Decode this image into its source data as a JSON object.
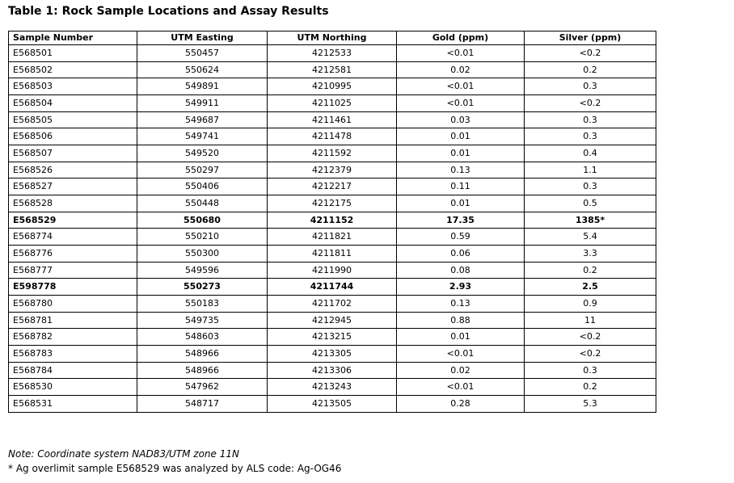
{
  "page": {
    "title": "Table 1: Rock Sample Locations and Assay Results"
  },
  "table": {
    "columns": [
      "Sample Number",
      "UTM Easting",
      "UTM Northing",
      "Gold (ppm)",
      "Silver (ppm)"
    ],
    "rows": [
      {
        "bold": false,
        "cells": [
          "E568501",
          "550457",
          "4212533",
          "<0.01",
          "<0.2"
        ]
      },
      {
        "bold": false,
        "cells": [
          "E568502",
          "550624",
          "4212581",
          "0.02",
          "0.2"
        ]
      },
      {
        "bold": false,
        "cells": [
          "E568503",
          "549891",
          "4210995",
          "<0.01",
          "0.3"
        ]
      },
      {
        "bold": false,
        "cells": [
          "E568504",
          "549911",
          "4211025",
          "<0.01",
          "<0.2"
        ]
      },
      {
        "bold": false,
        "cells": [
          "E568505",
          "549687",
          "4211461",
          "0.03",
          "0.3"
        ]
      },
      {
        "bold": false,
        "cells": [
          "E568506",
          "549741",
          "4211478",
          "0.01",
          "0.3"
        ]
      },
      {
        "bold": false,
        "cells": [
          "E568507",
          "549520",
          "4211592",
          "0.01",
          "0.4"
        ]
      },
      {
        "bold": false,
        "cells": [
          "E568526",
          "550297",
          "4212379",
          "0.13",
          "1.1"
        ]
      },
      {
        "bold": false,
        "cells": [
          "E568527",
          "550406",
          "4212217",
          "0.11",
          "0.3"
        ]
      },
      {
        "bold": false,
        "cells": [
          "E568528",
          "550448",
          "4212175",
          "0.01",
          "0.5"
        ]
      },
      {
        "bold": true,
        "cells": [
          "E568529",
          "550680",
          "4211152",
          "17.35",
          "1385*"
        ]
      },
      {
        "bold": false,
        "cells": [
          "E568774",
          "550210",
          "4211821",
          "0.59",
          "5.4"
        ]
      },
      {
        "bold": false,
        "cells": [
          "E568776",
          "550300",
          "4211811",
          "0.06",
          "3.3"
        ]
      },
      {
        "bold": false,
        "cells": [
          "E568777",
          "549596",
          "4211990",
          "0.08",
          "0.2"
        ]
      },
      {
        "bold": true,
        "cells": [
          "E598778",
          "550273",
          "4211744",
          "2.93",
          "2.5"
        ]
      },
      {
        "bold": false,
        "cells": [
          "E568780",
          "550183",
          "4211702",
          "0.13",
          "0.9"
        ]
      },
      {
        "bold": false,
        "cells": [
          "E568781",
          "549735",
          "4212945",
          "0.88",
          "11"
        ]
      },
      {
        "bold": false,
        "cells": [
          "E568782",
          "548603",
          "4213215",
          "0.01",
          "<0.2"
        ]
      },
      {
        "bold": false,
        "cells": [
          "E568783",
          "548966",
          "4213305",
          "<0.01",
          "<0.2"
        ]
      },
      {
        "bold": false,
        "cells": [
          "E568784",
          "548966",
          "4213306",
          "0.02",
          "0.3"
        ]
      },
      {
        "bold": false,
        "cells": [
          "E568530",
          "547962",
          "4213243",
          "<0.01",
          "0.2"
        ]
      },
      {
        "bold": false,
        "cells": [
          "E568531",
          "548717",
          "4213505",
          "0.28",
          "5.3"
        ]
      }
    ]
  },
  "footnotes": {
    "coordinate_note": "Note: Coordinate system NAD83/UTM zone 11N",
    "overlimit_note": "* Ag overlimit sample E568529 was analyzed by ALS code: Ag-OG46"
  },
  "colors": {
    "text": "#000000",
    "border": "#000000",
    "background": "#ffffff"
  }
}
